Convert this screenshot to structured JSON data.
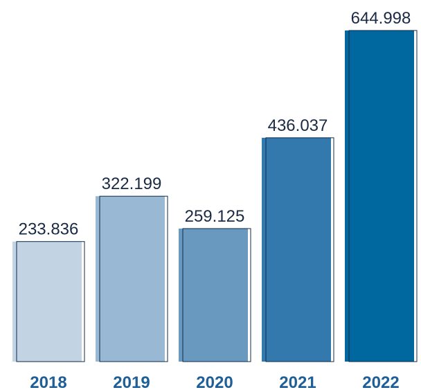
{
  "chart_data": {
    "type": "bar",
    "categories": [
      "2018",
      "2019",
      "2020",
      "2021",
      "2022"
    ],
    "values": [
      233836,
      322199,
      259125,
      436037,
      644998
    ],
    "value_labels": [
      "233.836",
      "322.199",
      "259.125",
      "436.037",
      "644.998"
    ],
    "title": "",
    "xlabel": "",
    "ylabel": "",
    "ylim": [
      0,
      644998
    ],
    "grid": false,
    "legend": "none",
    "colors": [
      "#c2d3e3",
      "#98b8d3",
      "#6a99c0",
      "#3479ae",
      "#00679f"
    ],
    "outline_color": "#0d2a4a",
    "label_color": "#1a2a44",
    "category_color": "#1f5f97"
  }
}
